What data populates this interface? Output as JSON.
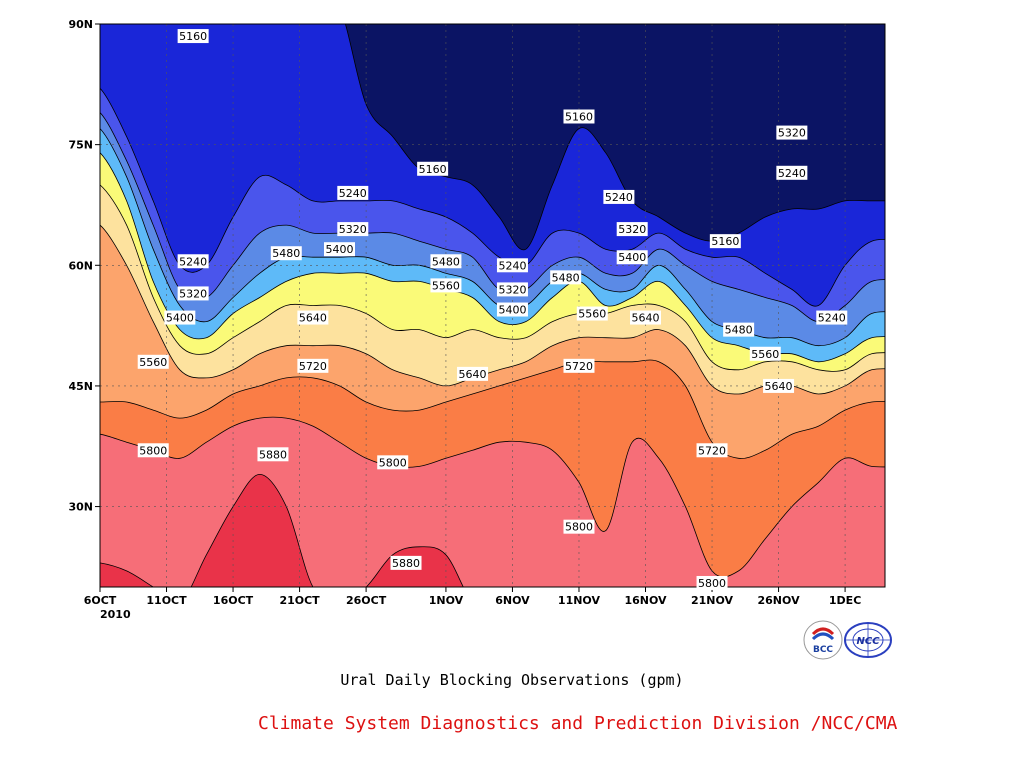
{
  "chart_data": {
    "type": "contour",
    "title": "Ural Daily Blocking Observations (gpm)",
    "variable_unit": "gpm",
    "x_axis": {
      "kind": "date",
      "range": [
        "2010-10-06",
        "2010-12-04"
      ],
      "ticks": [
        {
          "date": "2010-10-06",
          "label": "6OCT"
        },
        {
          "date": "2010-10-11",
          "label": "11OCT"
        },
        {
          "date": "2010-10-16",
          "label": "16OCT"
        },
        {
          "date": "2010-10-21",
          "label": "21OCT"
        },
        {
          "date": "2010-10-26",
          "label": "26OCT"
        },
        {
          "date": "2010-11-01",
          "label": "1NOV"
        },
        {
          "date": "2010-11-06",
          "label": "6NOV"
        },
        {
          "date": "2010-11-11",
          "label": "11NOV"
        },
        {
          "date": "2010-11-16",
          "label": "16NOV"
        },
        {
          "date": "2010-11-21",
          "label": "21NOV"
        },
        {
          "date": "2010-11-26",
          "label": "26NOV"
        },
        {
          "date": "2010-12-01",
          "label": "1DEC"
        }
      ],
      "year_label": "2010"
    },
    "y_axis": {
      "kind": "latitude",
      "range": [
        20,
        90
      ],
      "ticks": [
        {
          "value": 30,
          "label": "30N"
        },
        {
          "value": 45,
          "label": "45N"
        },
        {
          "value": 60,
          "label": "60N"
        },
        {
          "value": 75,
          "label": "75N"
        },
        {
          "value": 90,
          "label": "90N"
        }
      ]
    },
    "grid": true,
    "contour_levels": [
      5160,
      5240,
      5320,
      5400,
      5480,
      5560,
      5640,
      5720,
      5800,
      5880
    ],
    "fill_colors": [
      "#0b1464",
      "#1a26d8",
      "#4a55ec",
      "#5b8ae6",
      "#5ebaf8",
      "#fafa78",
      "#fde29e",
      "#fca46c",
      "#fa7d46",
      "#f66e78",
      "#e93349"
    ],
    "latitudes": [
      20,
      25,
      30,
      35,
      40,
      45,
      50,
      55,
      60,
      65,
      70,
      75,
      80,
      85,
      90
    ],
    "days": [
      "2010-10-06",
      "2010-10-08",
      "2010-10-10",
      "2010-10-12",
      "2010-10-14",
      "2010-10-16",
      "2010-10-18",
      "2010-10-20",
      "2010-10-22",
      "2010-10-24",
      "2010-10-26",
      "2010-10-28",
      "2010-10-30",
      "2010-11-01",
      "2010-11-03",
      "2010-11-05",
      "2010-11-07",
      "2010-11-09",
      "2010-11-11",
      "2010-11-13",
      "2010-11-15",
      "2010-11-17",
      "2010-11-19",
      "2010-11-21",
      "2010-11-23",
      "2010-11-25",
      "2010-11-27",
      "2010-11-29",
      "2010-12-01",
      "2010-12-03"
    ],
    "boundaries": [
      {
        "level": 5880,
        "lat": [
          23,
          22,
          20,
          18,
          24,
          30,
          34,
          30,
          20,
          18,
          20,
          24,
          25,
          24,
          18,
          16,
          14,
          14,
          14,
          14,
          14,
          14,
          14,
          14,
          14,
          14,
          14,
          14,
          14,
          14
        ]
      },
      {
        "level": 5800,
        "lat": [
          39,
          38,
          37,
          36,
          38,
          40,
          41,
          41,
          40,
          38,
          36,
          35,
          35,
          36,
          37,
          38,
          38,
          37,
          33,
          27,
          38,
          36,
          30,
          22,
          22,
          26,
          30,
          33,
          36,
          35
        ]
      },
      {
        "level": 5720,
        "lat": [
          43,
          43,
          42,
          41,
          42,
          44,
          45,
          46,
          46,
          45,
          43,
          42,
          42,
          43,
          44,
          45,
          46,
          47,
          48,
          48,
          48,
          48,
          45,
          38,
          36,
          37,
          39,
          40,
          42,
          43
        ]
      },
      {
        "level": 5640,
        "lat": [
          65,
          60,
          53,
          47,
          46,
          47,
          49,
          50,
          50,
          50,
          49,
          47,
          46,
          45,
          46,
          47,
          48,
          50,
          51,
          51,
          51,
          52,
          50,
          45,
          44,
          45,
          45,
          44,
          45,
          47
        ]
      },
      {
        "level": 5560,
        "lat": [
          70,
          65,
          56,
          50,
          49,
          51,
          53,
          55,
          55,
          55,
          54,
          52,
          52,
          51,
          52,
          51,
          51,
          53,
          54,
          54,
          55,
          55,
          53,
          48,
          47,
          48,
          48,
          47,
          47,
          49
        ]
      },
      {
        "level": 5480,
        "lat": [
          74,
          68,
          58,
          52,
          51,
          54,
          56,
          58,
          59,
          59,
          59,
          58,
          58,
          57,
          56,
          53,
          53,
          56,
          58,
          55,
          56,
          58,
          55,
          51,
          50,
          49,
          49,
          48,
          49,
          51
        ]
      },
      {
        "level": 5400,
        "lat": [
          77,
          71,
          62,
          55,
          53,
          56,
          59,
          61,
          61,
          61,
          61,
          60,
          60,
          59,
          58,
          55,
          55,
          58,
          59,
          57,
          57,
          60,
          57,
          53,
          52,
          51,
          51,
          50,
          51,
          54
        ]
      },
      {
        "level": 5320,
        "lat": [
          79,
          73,
          65,
          57,
          56,
          60,
          64,
          65,
          64,
          64,
          64,
          64,
          63,
          62,
          61,
          57,
          57,
          60,
          61,
          59,
          59,
          62,
          60,
          58,
          57,
          56,
          55,
          53,
          55,
          58
        ]
      },
      {
        "level": 5240,
        "lat": [
          82,
          76,
          68,
          60,
          60,
          66,
          71,
          70,
          68,
          68,
          68,
          68,
          67,
          66,
          64,
          61,
          60,
          64,
          64,
          62,
          62,
          64,
          62,
          61,
          61,
          59,
          57,
          55,
          60,
          63
        ]
      },
      {
        "level": 5160,
        "lat": [
          92,
          92,
          92,
          92,
          92,
          92,
          92,
          92,
          92,
          92,
          80,
          76,
          72,
          71,
          70,
          66,
          62,
          70,
          77,
          74,
          68,
          66,
          64,
          63,
          64,
          66,
          67,
          67,
          68,
          68
        ]
      }
    ],
    "contour_labels": [
      {
        "value": "5160",
        "date": "2010-10-13",
        "lat": 88.5
      },
      {
        "value": "5160",
        "date": "2010-11-11",
        "lat": 78.5
      },
      {
        "value": "5160",
        "date": "2010-10-31",
        "lat": 72.0
      },
      {
        "value": "5160",
        "date": "2010-11-22",
        "lat": 63.0
      },
      {
        "value": "5240",
        "date": "2010-10-25",
        "lat": 69.0
      },
      {
        "value": "5240",
        "date": "2010-11-14",
        "lat": 68.5
      },
      {
        "value": "5240",
        "date": "2010-10-13",
        "lat": 60.5
      },
      {
        "value": "5240",
        "date": "2010-11-06",
        "lat": 60.0
      },
      {
        "value": "5240",
        "date": "2010-11-27",
        "lat": 71.5
      },
      {
        "value": "5240",
        "date": "2010-11-30",
        "lat": 53.5
      },
      {
        "value": "5320",
        "date": "2010-11-27",
        "lat": 76.5
      },
      {
        "value": "5320",
        "date": "2010-10-25",
        "lat": 64.5
      },
      {
        "value": "5320",
        "date": "2010-11-15",
        "lat": 64.5
      },
      {
        "value": "5320",
        "date": "2010-10-13",
        "lat": 56.5
      },
      {
        "value": "5320",
        "date": "2010-11-06",
        "lat": 57.0
      },
      {
        "value": "5400",
        "date": "2010-10-24",
        "lat": 62.0
      },
      {
        "value": "5400",
        "date": "2010-11-15",
        "lat": 61.0
      },
      {
        "value": "5400",
        "date": "2010-10-12",
        "lat": 53.5
      },
      {
        "value": "5400",
        "date": "2010-11-06",
        "lat": 54.5
      },
      {
        "value": "5480",
        "date": "2010-10-20",
        "lat": 61.5
      },
      {
        "value": "5480",
        "date": "2010-11-01",
        "lat": 60.5
      },
      {
        "value": "5480",
        "date": "2010-11-10",
        "lat": 58.5
      },
      {
        "value": "5480",
        "date": "2010-11-23",
        "lat": 52.0
      },
      {
        "value": "5560",
        "date": "2010-11-01",
        "lat": 57.5
      },
      {
        "value": "5560",
        "date": "2010-11-12",
        "lat": 54.0
      },
      {
        "value": "5560",
        "date": "2010-11-25",
        "lat": 49.0
      },
      {
        "value": "5560",
        "date": "2010-10-10",
        "lat": 48.0
      },
      {
        "value": "5640",
        "date": "2010-10-22",
        "lat": 53.5
      },
      {
        "value": "5640",
        "date": "2010-11-03",
        "lat": 46.5
      },
      {
        "value": "5640",
        "date": "2010-11-16",
        "lat": 53.5
      },
      {
        "value": "5640",
        "date": "2010-11-26",
        "lat": 45.0
      },
      {
        "value": "5720",
        "date": "2010-10-22",
        "lat": 47.5
      },
      {
        "value": "5720",
        "date": "2010-11-11",
        "lat": 47.5
      },
      {
        "value": "5720",
        "date": "2010-11-21",
        "lat": 37.0
      },
      {
        "value": "5800",
        "date": "2010-10-10",
        "lat": 37.0
      },
      {
        "value": "5800",
        "date": "2010-10-28",
        "lat": 35.5
      },
      {
        "value": "5800",
        "date": "2010-11-11",
        "lat": 27.5
      },
      {
        "value": "5800",
        "date": "2010-11-21",
        "lat": 20.5
      },
      {
        "value": "5880",
        "date": "2010-10-19",
        "lat": 36.5
      },
      {
        "value": "5880",
        "date": "2010-10-29",
        "lat": 23.0
      }
    ],
    "credit": "Climate System Diagnostics and Prediction Division /NCC/CMA"
  },
  "logos": [
    {
      "name": "bcc-logo",
      "text": "BCC"
    },
    {
      "name": "ncc-logo",
      "text": "NCC"
    }
  ]
}
